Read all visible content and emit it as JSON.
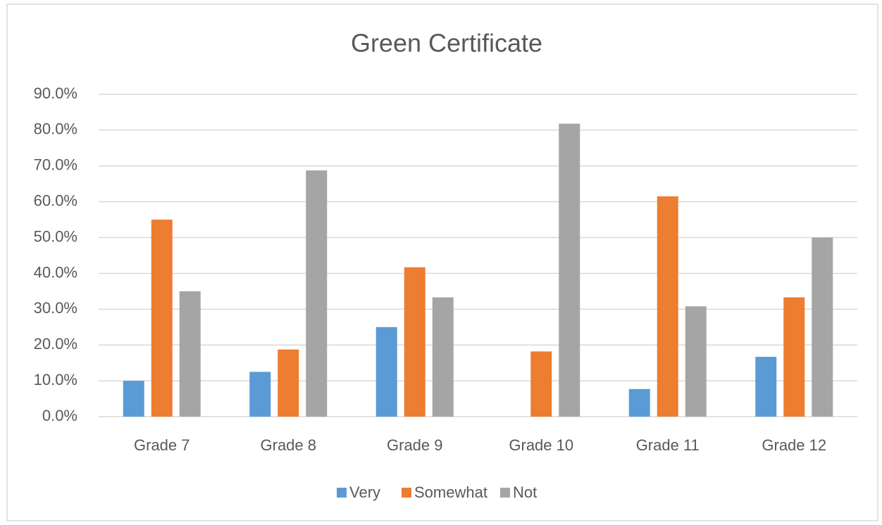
{
  "chart_data": {
    "type": "bar",
    "title": "Green Certificate",
    "categories": [
      "Grade 7",
      "Grade 8",
      "Grade 9",
      "Grade 10",
      "Grade 11",
      "Grade 12"
    ],
    "series": [
      {
        "name": "Very",
        "color": "#5b9bd5",
        "values": [
          10.0,
          12.5,
          25.0,
          0,
          7.7,
          16.7
        ]
      },
      {
        "name": "Somewhat",
        "color": "#ed7d31",
        "values": [
          55.0,
          18.75,
          41.7,
          18.2,
          61.5,
          33.3
        ]
      },
      {
        "name": "Not",
        "color": "#a5a5a5",
        "values": [
          35.0,
          68.75,
          33.3,
          81.8,
          30.8,
          50.0
        ]
      }
    ],
    "ylim": [
      0,
      90
    ],
    "yticks": [
      {
        "value": 0,
        "label": "0.0%"
      },
      {
        "value": 10,
        "label": "10.0%"
      },
      {
        "value": 20,
        "label": "20.0%"
      },
      {
        "value": 30,
        "label": "30.0%"
      },
      {
        "value": 40,
        "label": "40.0%"
      },
      {
        "value": 50,
        "label": "50.0%"
      },
      {
        "value": 60,
        "label": "60.0%"
      },
      {
        "value": 70,
        "label": "70.0%"
      },
      {
        "value": 80,
        "label": "80.0%"
      },
      {
        "value": 90,
        "label": "90.0%"
      }
    ],
    "grid": true,
    "legend": "bottom"
  }
}
